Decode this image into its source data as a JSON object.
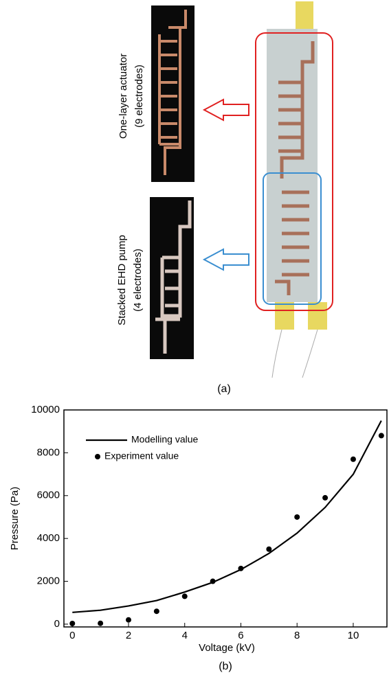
{
  "panel_a": {
    "label": "(a)",
    "callouts": [
      {
        "title": "One-layer actuator",
        "subtitle": "(9 electrodes)"
      },
      {
        "title": "Stacked EHD pump",
        "subtitle": "(4 electrodes)"
      }
    ]
  },
  "panel_b": {
    "label": "(b)"
  },
  "chart_data": {
    "type": "line",
    "x_label": "Voltage (kV)",
    "y_label": "Pressure (Pa)",
    "x": [
      0,
      1,
      2,
      3,
      4,
      5,
      6,
      7,
      8,
      9,
      10,
      11
    ],
    "series": [
      {
        "name": "Modelling value",
        "type": "line",
        "color": "#000000",
        "values": [
          550,
          650,
          850,
          1100,
          1500,
          1950,
          2550,
          3300,
          4250,
          5450,
          7000,
          9500
        ]
      },
      {
        "name": "Experiment value",
        "type": "scatter",
        "color": "#000000",
        "values": [
          30,
          40,
          200,
          600,
          1300,
          2000,
          2600,
          3500,
          5000,
          5900,
          7700,
          8800
        ]
      }
    ],
    "xlim": [
      -0.3,
      11.2
    ],
    "ylim": [
      -130,
      10000
    ],
    "xticks": [
      0,
      2,
      4,
      6,
      8,
      10
    ],
    "yticks": [
      0,
      2000,
      4000,
      6000,
      8000,
      10000
    ],
    "grid": false,
    "legend": "upper left"
  }
}
